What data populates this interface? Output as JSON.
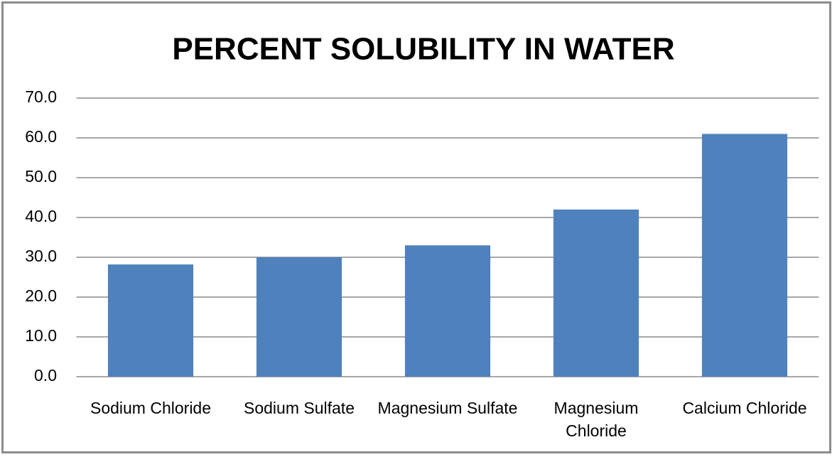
{
  "chart_data": {
    "type": "bar",
    "title": "PERCENT SOLUBILITY IN WATER",
    "categories": [
      "Sodium Chloride",
      "Sodium Sulfate",
      "Magnesium Sulfate",
      "Magnesium Chloride",
      "Calcium Chloride"
    ],
    "values": [
      28.2,
      30.0,
      33.0,
      42.0,
      61.0
    ],
    "color": "#4f81bd",
    "ylim": [
      0,
      70
    ],
    "yticks": [
      {
        "value": 0,
        "label": "0.0"
      },
      {
        "value": 10,
        "label": "10.0"
      },
      {
        "value": 20,
        "label": "20.0"
      },
      {
        "value": 30,
        "label": "30.0"
      },
      {
        "value": 40,
        "label": "40.0"
      },
      {
        "value": 50,
        "label": "50.0"
      },
      {
        "value": 60,
        "label": "60.0"
      },
      {
        "value": 70,
        "label": "70.0"
      }
    ],
    "grid": true
  }
}
